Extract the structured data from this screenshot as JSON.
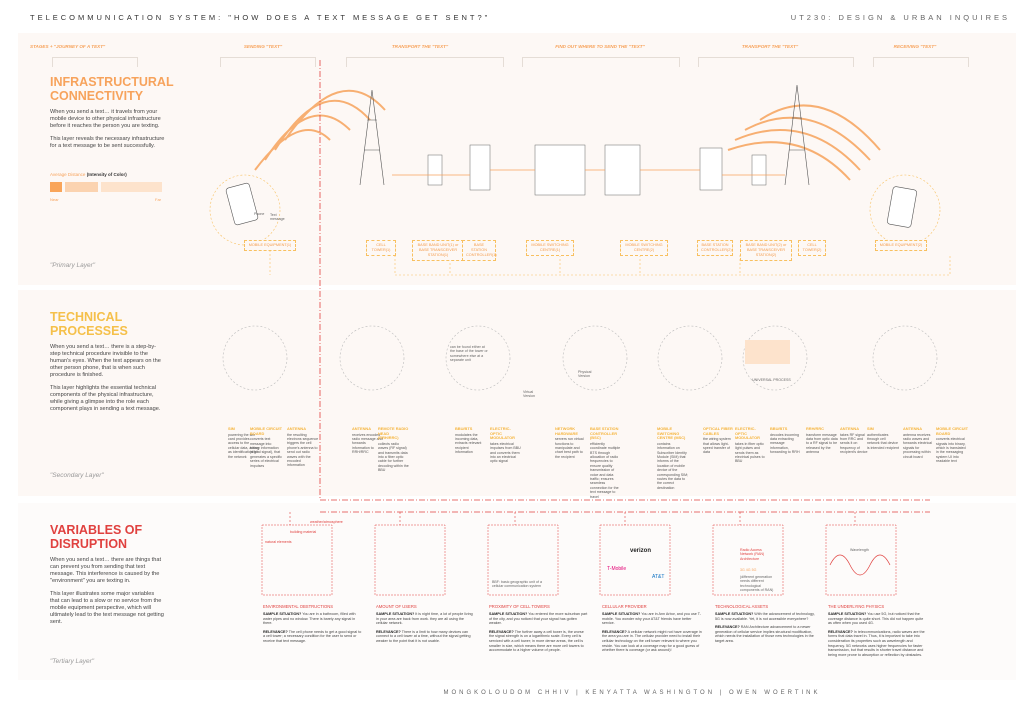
{
  "header": {
    "title": "TELECOMMUNICATION SYSTEM: \"HOW DOES A TEXT MESSAGE GET SENT?\"",
    "course": "UT230: DESIGN & URBAN INQUIRES"
  },
  "stages": [
    "STAGES + \"JOURNEY OF A TEXT\"",
    "SENDING \"TEXT\"",
    "TRANSPORT THE \"TEXT\"",
    "FIND OUT WHERE TO SEND THE \"TEXT\"",
    "TRANSPORT THE \"TEXT\"",
    "RECEIVING \"TEXT\""
  ],
  "colors": {
    "primary": "#f7a35c",
    "secondary": "#f5c04a",
    "tertiary": "#e0413f",
    "panel": "#fdf8f5"
  },
  "primary": {
    "title_1": "INFRASTRUCTURAL",
    "title_2": "CONNECTIVITY",
    "p1": "When you send a text… it travels from your mobile device to other physical infrastructure before it reaches the person you are texting.",
    "p2": "This layer reveals the necessary infrastructure for a text message to be sent successfully.",
    "legend_label": "Average Distance",
    "legend_bold": "(Intensity of Color)",
    "near": "Near",
    "far": "Far",
    "layer": "\"Primary Layer\"",
    "phone_label": "Phone",
    "text_label": "Text message",
    "components": [
      "MOBILE EQUIPMENT(1)",
      "CELL TOWER(1)",
      "BASE BAND UNIT(1) or BASE TRANSCEIVER STATION(1)",
      "BASE STATION CONTROLLER(1)",
      "MOBILE SWITCHING CENTRE(1)",
      "MOBILE SWITCHING CENTRE(2)",
      "BASE STATION CONTROLLER(2)",
      "BASE BAND UNIT(2) or BASE TRANSCEIVER STATION(2)",
      "CELL TOWER(2)",
      "MOBILE EQUIPMENT(2)"
    ]
  },
  "secondary": {
    "title_1": "TECHNICAL",
    "title_2": "PROCESSES",
    "p1": "When you send a text… there is a step-by-step technical procedure invisible to the human's eyes. When the text appears on the other person phone, that is when such procedure is finished.",
    "p2": "This layer highlights the essential technical components of the physical infrastructure, while giving a glimpse into the role each component plays in sending a text message.",
    "layer": "\"Secondary Layer\"",
    "note_bbu": "can be found either at the base of the tower or somewhere else at a separate unit",
    "virtual": "Virtual Version",
    "physical": "Physical Version",
    "universal": "UNIVERSAL PROCESS",
    "items": [
      {
        "t": "SIM",
        "d": "powering the sim card provides access to the cellular data, acting as identification for the network"
      },
      {
        "t": "MOBILE CIRCUIT BOARD",
        "d": "converts text message into binary information (digital signal), that generates a specific series of electrical impulses"
      },
      {
        "t": "ANTENNA",
        "d": "the resulting electrons sequence triggers the cell phone's antenna to send out radio waves with the encoded information"
      },
      {
        "t": "ANTENNA",
        "d": "receives encoded radio message and forwards information to RRH/RRC"
      },
      {
        "t": "REMOTE RADIO HEAD (RRH/RRC)",
        "d": "collects radio waves (RF signal) and transmits data into a fiber optic cable for further decoding within the BBU"
      },
      {
        "t": "BBU/BTS",
        "d": "modulates the incoming data, extracts relevant recipient information"
      },
      {
        "t": "ELECTRIC-OPTIC MODULATOR",
        "d": "takes electrical impulses from BBU and converts them into an electrical optic signal"
      },
      {
        "t": "NETWORK HARDWARE",
        "d": "servers run virtual functions to manipulate and chart best path to the recipient"
      },
      {
        "t": "BASE STATION CONTROLLER (BSC)",
        "d": "efficiently coordinate multiple BTS through allocation of radio frequencies to ensure quality transmission of voice and data traffic; ensures seamless connection for the text message to travel"
      },
      {
        "t": "MOBILE SWITCHING CENTRE (MSC)",
        "d": "contains information on Subscriber Identity Module (SIM) that informs of the location of mobile device of the corresponding SIM; routes the data to the correct destination"
      },
      {
        "t": "OPTICAL FIBER CABLES",
        "d": "the wiring system that allows light-speed transfer of data"
      },
      {
        "t": "ELECTRIC-OPTIC MODULATOR",
        "d": "takes in fiber optic light pulses and sends them as electrical pulses to BBU"
      },
      {
        "t": "BBU/BTS",
        "d": "decodes incoming data extracting message information, forwarding to RRH"
      },
      {
        "t": "RRH/RRC",
        "d": "transform message data from optic data to a RF signal to be released by the antenna"
      },
      {
        "t": "ANTENNA",
        "d": "takes RF signal from RRC and sends it on frequency of recipient's device"
      },
      {
        "t": "SIM",
        "d": "authenticates through cell network that device is intended recipient"
      },
      {
        "t": "ANTENNA",
        "d": "antenna receives radio waves and forwards electrical signals for processing within circuit board"
      },
      {
        "t": "MOBILE CIRCUIT BOARD",
        "d": "converts electrical signals into binary, which is translated in the messaging system UI into readable text"
      }
    ]
  },
  "tertiary": {
    "title_1": "VARIABLES OF",
    "title_2": "DISRUPTION",
    "p1": "When you send a text… there are things that can prevent you from sending that text message. This interference is caused by the \"environment\" you are texting in.",
    "p2": "This layer illustrates some major variables that can lead to a slow or no service from the mobile equipment perspective, which will ultimately lead to the text message not getting sent.",
    "layer": "\"Tertiary Layer\"",
    "sample_label": "SAMPLE SITUATION?",
    "relevance_label": "RELEVANCE?",
    "labels": {
      "natural": "natural elements",
      "building": "building material",
      "weather": "weather/atmosphere",
      "bbf": "BBF: basic geographic unit of a cellular communication system",
      "verizon": "verizon",
      "tmobile": "T-Mobile",
      "att": "AT&T",
      "ran": "Radio Access Network (RAN) Architecture",
      "gens": "3G  4G  5G",
      "gens_note": "(different generation needs different technological components of RAN)",
      "wave": "Wavelength"
    },
    "items": [
      {
        "t": "ENVIRONMENTAL OBSTRUCTIONS",
        "s": "You are in a bathroom, filled with water pipes and no window. There is barely any signal in there.",
        "r": "The cell phone needs to get a good signal to a cell tower; a necessary condition for the user to send or receive that text message."
      },
      {
        "t": "AMOUNT OF USERS",
        "s": "It is night time, a lot of people living in your area are back from work. they are all using the cellular network.",
        "r": "There is a limit to how many devices can connect to a cell tower at a time, without the signal getting weaker to the point that it is not usable."
      },
      {
        "t": "PROXIMITY OF CELL TOWERS",
        "s": "You entered the more suburban part of the city, and you noticed that your signal has gotten weaker.",
        "r": "The further away a cell tower is, the worse the signal strength is on a logarithmic scale. Every cell is serviced with a cell tower; in more dense areas, the cell is smaller in size, which means there are more cell towers to accommodate to a higher volume of people."
      },
      {
        "t": "CELLULAR PROVIDER",
        "s": "You are in Ann Arbor, and you use T-mobile. You wonder why your AT&T friends have better service.",
        "r": "A cellular network might not have coverage in the area you are in. The cellular provider need to install their cellular technology on the cell tower relevant to where you reside. You can look at a coverage map for a good guess of whether there is coverage (or ask around)!"
      },
      {
        "t": "TECHNOLOGICAL ASSETS",
        "s": "With the advancement of technology, 5G is now available. Yet, it is not accessible everywhere?",
        "r": "RAN Architecture advancement to a newer generation of cellular service implies structural modification, which needs the installation of those new technologies in the target area."
      },
      {
        "t": "THE UNDERLYING PHYSICS",
        "s": "You use 5G, but noticed that the coverage distance is quite short. This did not happen quite as often when you used 4G.",
        "r": "In telecommunications, radio waves are the forms that data travel in. Thus, it is important to take into consideration its properties such as wavelength and frequency. 5G networks uses higher frequencies for faster transmission, but that results in shorter travel distance and being more prone to absorption or reflection by obstacles."
      }
    ]
  },
  "footer": "MONGKOLOUDOM CHHIV | KENYATTA WASHINGTON | OWEN WOERTINK"
}
